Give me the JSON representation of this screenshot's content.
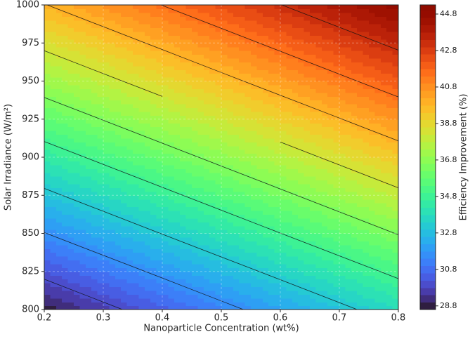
{
  "chart_data": {
    "type": "contourf",
    "x_label": "Nanoparticle Concentration (wt%)",
    "y_label": "Solar Irradiance (W/m²)",
    "colorbar_label": "Efficiency Improvement (%)",
    "x": [
      0.2,
      0.3,
      0.4,
      0.5,
      0.6,
      0.7,
      0.8
    ],
    "y": [
      800,
      825,
      850,
      875,
      900,
      925,
      950,
      975,
      1000
    ],
    "z": [
      [
        28.8,
        29.63,
        30.46,
        31.29,
        32.12,
        32.95,
        33.78
      ],
      [
        30.18,
        31.01,
        31.84,
        32.67,
        33.5,
        34.33,
        35.16
      ],
      [
        31.57,
        32.4,
        33.23,
        34.06,
        34.89,
        35.72,
        36.55
      ],
      [
        32.95,
        33.78,
        34.61,
        35.44,
        36.27,
        37.1,
        37.93
      ],
      [
        34.33,
        35.16,
        35.99,
        36.82,
        37.65,
        38.48,
        39.31
      ],
      [
        35.71,
        36.54,
        37.37,
        38.2,
        39.03,
        39.86,
        40.69
      ],
      [
        37.1,
        37.93,
        38.76,
        39.59,
        40.42,
        41.25,
        42.08
      ],
      [
        38.48,
        39.31,
        40.14,
        40.97,
        41.8,
        42.63,
        43.46
      ],
      [
        39.86,
        40.69,
        41.52,
        42.35,
        43.18,
        44.01,
        44.84
      ]
    ],
    "xlim": [
      0.2,
      0.8
    ],
    "xticks": [
      0.2,
      0.3,
      0.4,
      0.5,
      0.6,
      0.7,
      0.8
    ],
    "ylim": [
      800,
      1000
    ],
    "yticks": [
      800,
      825,
      850,
      875,
      900,
      925,
      950,
      975,
      1000
    ],
    "zlim": [
      28.6,
      45.3
    ],
    "zticks": [
      28.8,
      30.8,
      32.8,
      34.8,
      36.8,
      38.8,
      40.8,
      42.8,
      44.8
    ],
    "fill_step": 0.4,
    "contour_levels": [
      29.9,
      31.6,
      33.2,
      34.9,
      36.5,
      38.2,
      39.9,
      41.5,
      43.2
    ],
    "colormap": "turbo",
    "grid": true
  }
}
